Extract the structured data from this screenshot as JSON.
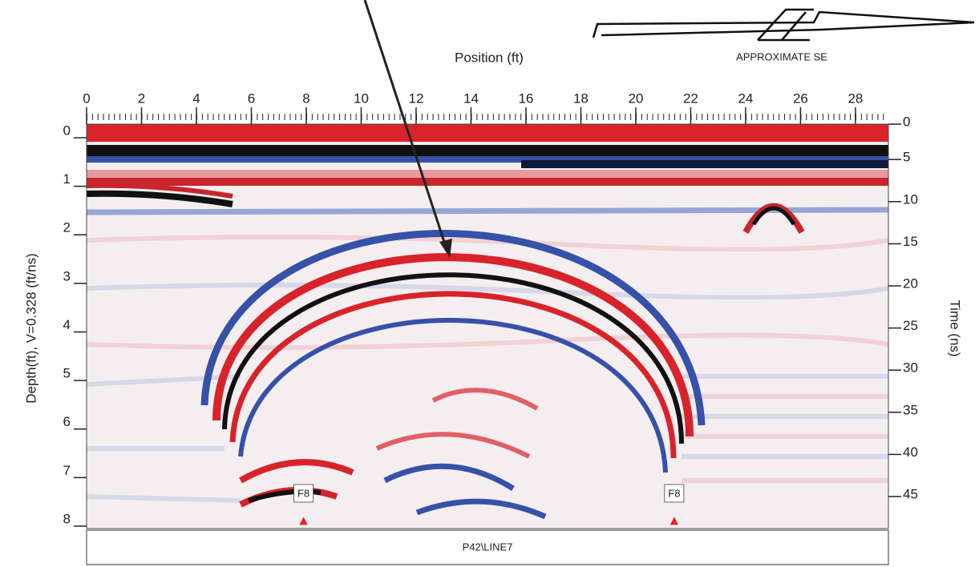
{
  "chart_data": {
    "type": "radargram",
    "x_label": "Position (ft)",
    "y_label": "Depth(ft), V=0.328 (ft/ns)",
    "y2_label": "Time (ns)",
    "line_label": "P42\\LINE7",
    "direction_label": "APPROXIMATE SE",
    "xlim": [
      0,
      29.2
    ],
    "xticks": [
      0,
      2,
      4,
      6,
      8,
      10,
      12,
      14,
      16,
      18,
      20,
      22,
      24,
      26,
      28
    ],
    "ylim": [
      -0.28,
      8.05
    ],
    "yticks": [
      0,
      1,
      2,
      3,
      4,
      5,
      6,
      7,
      8
    ],
    "y2lim": [
      0.8,
      48.8
    ],
    "y2ticks": [
      0,
      5,
      10,
      15,
      20,
      25,
      30,
      35,
      40,
      45
    ],
    "markers": [
      {
        "label": "F8",
        "x": 7.9
      },
      {
        "label": "F8",
        "x": 21.4
      }
    ]
  }
}
